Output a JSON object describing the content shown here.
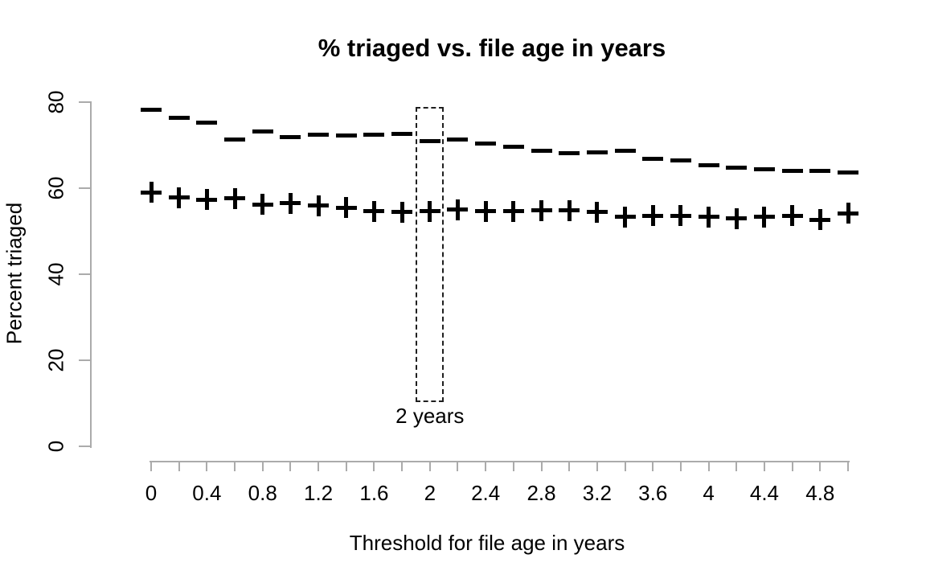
{
  "figure": {
    "background": "#ffffff"
  },
  "chart_data": {
    "type": "scatter",
    "title": "% triaged vs. file age in years",
    "xlabel": "Threshold for file age in years",
    "ylabel": "Percent triaged",
    "xlim": [
      0,
      5
    ],
    "ylim": [
      0,
      80
    ],
    "grid": false,
    "legend": "none",
    "x_tick_interval": 0.2,
    "x_label_interval": 0.4,
    "x_tick_labels": [
      "0",
      "0.4",
      "0.8",
      "1.2",
      "1.6",
      "2",
      "2.4",
      "2.8",
      "3.2",
      "3.6",
      "4",
      "4.4",
      "4.8"
    ],
    "y_ticks": [
      0,
      20,
      40,
      60,
      80
    ],
    "y_tick_labels": [
      "0",
      "20",
      "40",
      "60",
      "80"
    ],
    "x": [
      0,
      0.2,
      0.4,
      0.6,
      0.8,
      1.0,
      1.2,
      1.4,
      1.6,
      1.8,
      2.0,
      2.2,
      2.4,
      2.6,
      2.8,
      3.0,
      3.2,
      3.4,
      3.6,
      3.8,
      4.0,
      4.2,
      4.4,
      4.6,
      4.8,
      5.0
    ],
    "series": [
      {
        "name": "upper-series",
        "symbol": "dash",
        "marker": "-",
        "color": "#000000",
        "values": [
          78.3,
          76.3,
          75.2,
          71.3,
          73.2,
          71.9,
          72.4,
          72.3,
          72.5,
          72.6,
          70.9,
          71.4,
          70.4,
          69.7,
          68.6,
          68.2,
          68.4,
          68.6,
          66.9,
          66.4,
          65.4,
          64.7,
          64.3,
          64.1,
          64.1,
          63.6
        ]
      },
      {
        "name": "lower-series",
        "symbol": "plus",
        "marker": "+",
        "color": "#000000",
        "values": [
          59.0,
          57.8,
          57.3,
          57.6,
          56.2,
          56.5,
          55.9,
          55.5,
          54.6,
          54.4,
          54.6,
          55.0,
          54.6,
          54.6,
          54.8,
          54.8,
          54.4,
          53.3,
          53.6,
          53.6,
          53.3,
          52.9,
          53.3,
          53.6,
          52.7,
          54.2
        ]
      }
    ],
    "annotation": {
      "label": "2 years",
      "x": 2,
      "box": {
        "x_min": 1.9,
        "x_max": 2.1,
        "y_min": 10.3,
        "y_max": 78.9
      }
    },
    "colors": {
      "points": "#000000",
      "axis": "#ababab",
      "text": "#000000",
      "annotation_box": "#1f1f1f"
    }
  }
}
